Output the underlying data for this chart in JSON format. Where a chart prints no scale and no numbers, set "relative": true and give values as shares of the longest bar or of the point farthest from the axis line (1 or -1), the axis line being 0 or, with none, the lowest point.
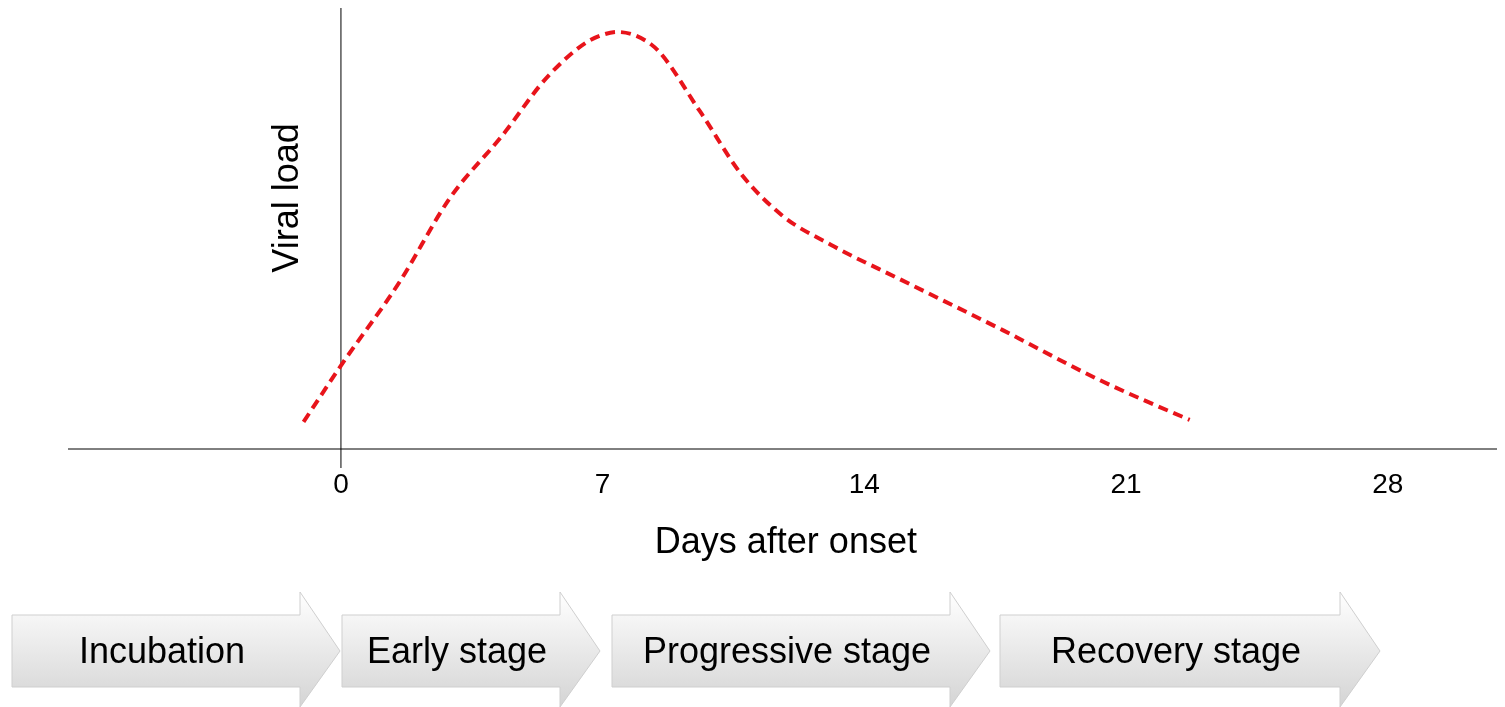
{
  "chart_data": {
    "type": "line",
    "relative": true,
    "ylabel": "Viral load",
    "xlabel": "Days after onset",
    "xlim": [
      -7.3,
      31
    ],
    "xticks": [
      0,
      7,
      14,
      21,
      28
    ],
    "line_style": "dashed",
    "marker": "none",
    "series": [
      {
        "color": "#e8141b",
        "x": [
          -1.0,
          0,
          1.6,
          2.9,
          4.3,
          5.6,
          6.9,
          7.4,
          8.3,
          9.6,
          10.7,
          11.8,
          13.1,
          15.0,
          17.7,
          20.3,
          22.7
        ],
        "values": [
          0.065,
          0.2,
          0.405,
          0.6,
          0.75,
          0.9,
          0.99,
          1.0,
          0.97,
          0.81,
          0.66,
          0.56,
          0.49,
          0.405,
          0.285,
          0.165,
          0.07
        ]
      }
    ],
    "annotations": [
      "Incubation",
      "Early stage",
      "Progressive stage",
      "Recovery stage"
    ]
  }
}
